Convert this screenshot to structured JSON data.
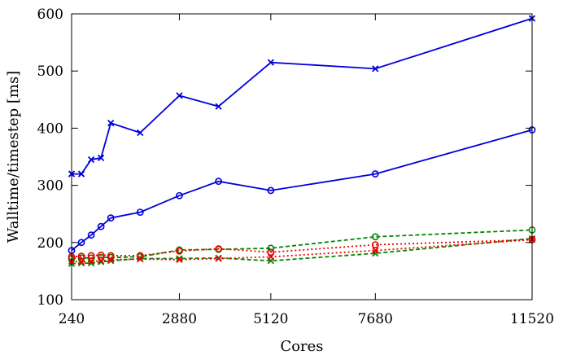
{
  "chart_data": {
    "type": "line",
    "title": "",
    "xlabel": "Cores",
    "ylabel": "Walltime/timestep [ms]",
    "xlim": [
      240,
      11520
    ],
    "ylim": [
      100,
      600
    ],
    "x_ticks": [
      "240",
      "2880",
      "5120",
      "7680",
      "11520"
    ],
    "x_tick_values": [
      240,
      2880,
      5120,
      7680,
      11520
    ],
    "y_ticks": [
      "100",
      "200",
      "300",
      "400",
      "500",
      "600"
    ],
    "y_tick_values": [
      100,
      200,
      300,
      400,
      500,
      600
    ],
    "grid": false,
    "legend": "none",
    "series": [
      {
        "color": "#0000dd",
        "marker": "x",
        "dash": "solid",
        "x": [
          240,
          480,
          720,
          960,
          1200,
          1920,
          2880,
          3840,
          5120,
          7680,
          11520
        ],
        "y": [
          320,
          320,
          345,
          348,
          409,
          392,
          457,
          438,
          515,
          504,
          592
        ]
      },
      {
        "color": "#0000dd",
        "marker": "o",
        "dash": "solid",
        "x": [
          240,
          480,
          720,
          960,
          1200,
          1920,
          2880,
          3840,
          5120,
          7680,
          11520
        ],
        "y": [
          186,
          200,
          213,
          228,
          243,
          253,
          282,
          307,
          291,
          320,
          397
        ]
      },
      {
        "color": "#008800",
        "marker": "o",
        "dash": "dashed",
        "x": [
          240,
          480,
          720,
          960,
          1200,
          1920,
          2880,
          3840,
          5120,
          7680,
          11520
        ],
        "y": [
          172,
          173,
          173,
          174,
          174,
          175,
          187,
          188,
          190,
          210,
          222
        ]
      },
      {
        "color": "#008800",
        "marker": "x",
        "dash": "dashed",
        "x": [
          240,
          480,
          720,
          960,
          1200,
          1920,
          2880,
          3840,
          5120,
          7680,
          11520
        ],
        "y": [
          163,
          164,
          164,
          166,
          168,
          172,
          172,
          173,
          168,
          181,
          207
        ]
      },
      {
        "color": "#ee0000",
        "marker": "o",
        "dash": "dotted",
        "x": [
          240,
          480,
          720,
          960,
          1200,
          1920,
          2880,
          3840,
          5120,
          7680,
          11520
        ],
        "y": [
          175,
          176,
          177,
          178,
          177,
          177,
          185,
          189,
          183,
          196,
          205
        ]
      },
      {
        "color": "#ee0000",
        "marker": "x",
        "dash": "dotted",
        "x": [
          240,
          480,
          720,
          960,
          1200,
          1920,
          2880,
          3840,
          5120,
          7680,
          11520
        ],
        "y": [
          167,
          166,
          167,
          168,
          170,
          171,
          170,
          172,
          175,
          186,
          205
        ]
      }
    ]
  }
}
